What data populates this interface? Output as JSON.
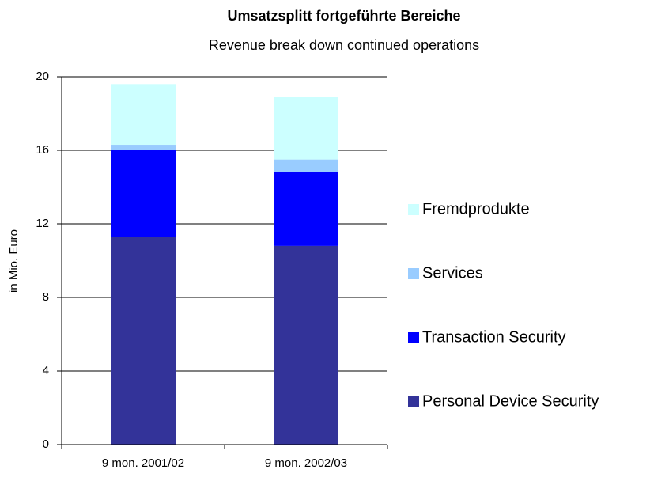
{
  "chart_data": {
    "type": "stacked_bar",
    "title": "Umsatzsplitt fortgeführte Bereiche",
    "subtitle": "Revenue break down continued operations",
    "y_label": "in Mio. Euro",
    "categories": [
      "9 mon. 2001/02",
      "9 mon. 2002/03"
    ],
    "series": [
      {
        "name": "Personal Device Security",
        "color": "#333399",
        "values": [
          11.3,
          10.8
        ]
      },
      {
        "name": "Transaction Security",
        "color": "#0000ff",
        "values": [
          4.7,
          4.0
        ]
      },
      {
        "name": "Services",
        "color": "#99ccff",
        "values": [
          0.3,
          0.7
        ]
      },
      {
        "name": "Fremdprodukte",
        "color": "#ccffff",
        "values": [
          3.3,
          3.4
        ]
      }
    ],
    "ylim": [
      0,
      20
    ],
    "yticks": [
      0,
      4,
      8,
      12,
      16,
      20
    ],
    "grid": true,
    "legend": "right"
  }
}
